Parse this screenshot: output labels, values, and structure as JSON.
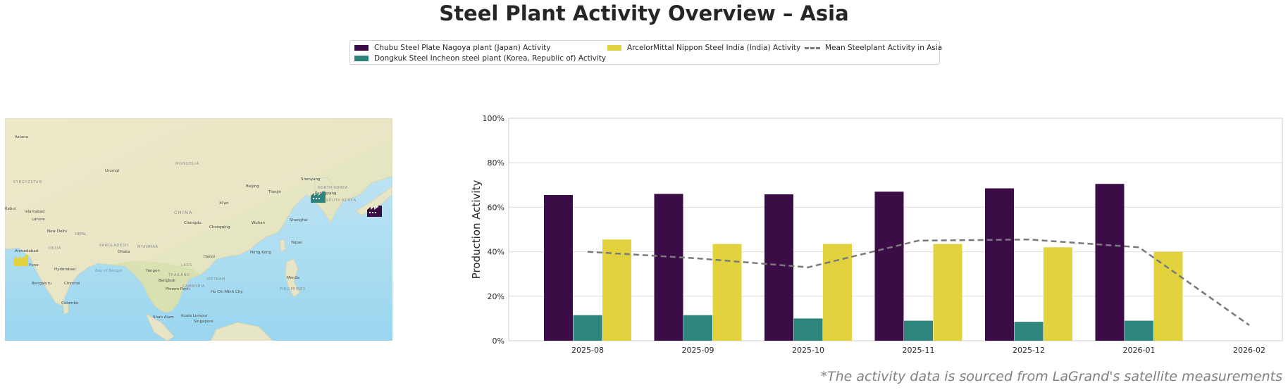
{
  "title": "Steel Plant Activity Overview – Asia",
  "legend": {
    "items": [
      {
        "label": "Chubu Steel Plate Nagoya plant (Japan) Activity",
        "type": "swatch",
        "color": "#3c0c47"
      },
      {
        "label": "Dongkuk Steel Incheon steel plant (Korea, Republic of) Activity",
        "type": "swatch",
        "color": "#2e857e"
      },
      {
        "label": "ArcelorMittal Nippon Steel India (India) Activity",
        "type": "swatch",
        "color": "#e2d33e"
      },
      {
        "label": "Mean Steelplant Activity in Asia",
        "type": "dashed-line",
        "color": "#7a7a7a"
      }
    ]
  },
  "map": {
    "labels": [
      "Astana",
      "KYRGYZSTAN",
      "Urumqi",
      "MONGOLIA",
      "Kabul",
      "Islamabad",
      "Lahore",
      "New Delhi",
      "NEPAL",
      "INDIA",
      "Ahmedabad",
      "Pune",
      "Hyderabad",
      "Bengaluru",
      "Chennai",
      "Colombo",
      "Dhaka",
      "BANGLADESH",
      "MYANMAR",
      "Bay of Bengal",
      "Yangon",
      "LAOS",
      "THAILAND",
      "Bangkok",
      "CAMBODIA",
      "Phnom Penh",
      "Ho Chi Minh City",
      "VIETNAM",
      "Hanoi",
      "Kuala Lumpur",
      "Singapore",
      "Shah Alam",
      "Manila",
      "PHILIPPINES",
      "Taipei",
      "Hong Kong",
      "CHINA",
      "Chengdu",
      "Chongqing",
      "Wuhan",
      "Shanghai",
      "Beijing",
      "Tianjin",
      "Shenyang",
      "NORTH KOREA",
      "Pyongyang",
      "SOUTH KOREA",
      "Xi'an"
    ],
    "markers": [
      {
        "plant": "Chubu Steel Plate Nagoya plant (Japan)",
        "color": "#3c0c47",
        "icon": "factory-icon"
      },
      {
        "plant": "Dongkuk Steel Incheon steel plant (Korea, Republic of)",
        "color": "#2e857e",
        "icon": "factory-icon"
      },
      {
        "plant": "ArcelorMittal Nippon Steel India (India)",
        "color": "#e2d33e",
        "icon": "factory-icon"
      }
    ]
  },
  "chart_data": {
    "type": "bar",
    "categories": [
      "2025-08",
      "2025-09",
      "2025-10",
      "2025-11",
      "2025-12",
      "2026-01",
      "2026-02"
    ],
    "series": [
      {
        "name": "Chubu Steel Plate Nagoya plant (Japan) Activity",
        "color": "#3c0c47",
        "values": [
          65.5,
          66,
          65.8,
          67,
          68.5,
          70.5,
          null
        ]
      },
      {
        "name": "Dongkuk Steel Incheon steel plant (Korea, Republic of) Activity",
        "color": "#2e857e",
        "values": [
          11.5,
          11.5,
          10,
          9,
          8.5,
          9,
          null
        ]
      },
      {
        "name": "ArcelorMittal Nippon Steel India (India) Activity",
        "color": "#e2d33e",
        "values": [
          45.5,
          43.5,
          43.5,
          43.5,
          42,
          40,
          null
        ]
      }
    ],
    "line": {
      "name": "Mean Steelplant Activity in Asia",
      "color": "#7a7a7a",
      "style": "dashed",
      "values": [
        40,
        37,
        33,
        45,
        45.5,
        42,
        7
      ]
    },
    "ylabel": "Production Activity",
    "xlabel": "",
    "ylim": [
      0,
      100
    ],
    "yticks": [
      "0%",
      "20%",
      "40%",
      "60%",
      "80%",
      "100%"
    ],
    "grid": true
  },
  "footnote": "*The activity data is sourced from LaGrand's satellite measurements"
}
